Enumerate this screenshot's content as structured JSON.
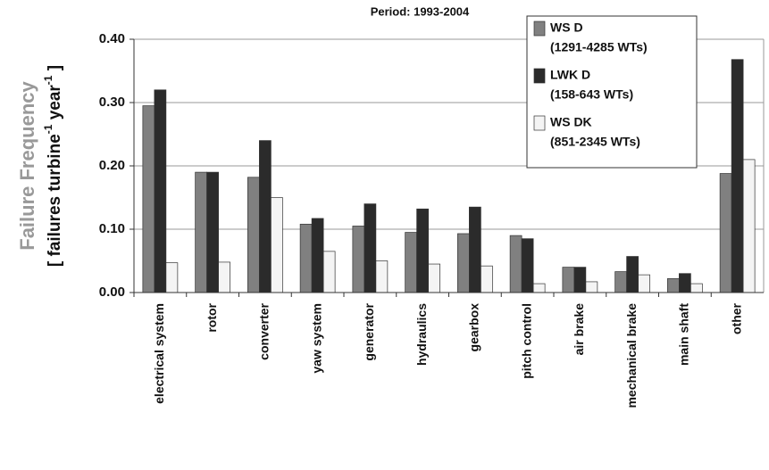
{
  "chart_data": {
    "type": "bar",
    "title": "Period: 1993-2004",
    "y_label": "Failure Frequency",
    "y_unit_label": [
      "[ failures turbine",
      "-1",
      " year",
      "-1",
      " ]"
    ],
    "categories": [
      "electrical system",
      "rotor",
      "converter",
      "yaw system",
      "generator",
      "hydraulics",
      "gearbox",
      "pitch control",
      "air brake",
      "mechanical brake",
      "main shaft",
      "other"
    ],
    "series": [
      {
        "name": "WS D",
        "description": "(1291-4285 WTs)",
        "color": "#808080",
        "values": [
          0.295,
          0.19,
          0.182,
          0.108,
          0.105,
          0.095,
          0.093,
          0.09,
          0.04,
          0.033,
          0.022,
          0.188
        ]
      },
      {
        "name": "LWK D",
        "description": "(158-643 WTs)",
        "color": "#2b2b2b",
        "values": [
          0.32,
          0.19,
          0.24,
          0.117,
          0.14,
          0.132,
          0.135,
          0.085,
          0.04,
          0.057,
          0.03,
          0.368
        ]
      },
      {
        "name": "WS DK",
        "description": "(851-2345 WTs)",
        "color": "#f4f4f4",
        "values": [
          0.047,
          0.048,
          0.15,
          0.065,
          0.05,
          0.045,
          0.042,
          0.014,
          0.017,
          0.028,
          0.014,
          0.21
        ]
      }
    ],
    "ylim": [
      0,
      0.4
    ],
    "yticks": [
      {
        "value": 0,
        "label": "0.00"
      },
      {
        "value": 0.1,
        "label": "0.10"
      },
      {
        "value": 0.2,
        "label": "0.20"
      },
      {
        "value": 0.3,
        "label": "0.30"
      },
      {
        "value": 0.4,
        "label": "0.40"
      }
    ],
    "grid": true
  }
}
